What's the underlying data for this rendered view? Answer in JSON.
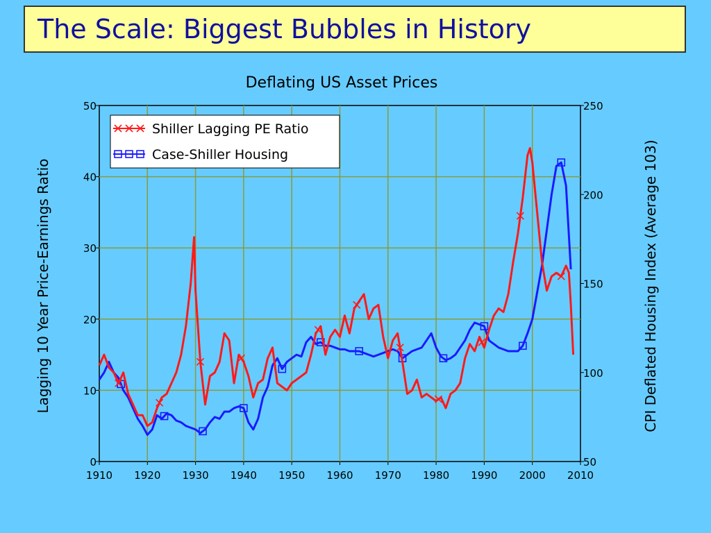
{
  "slide": {
    "title": "The Scale: Biggest Bubbles in History"
  },
  "chart_data": {
    "type": "line",
    "title": "Deflating US Asset Prices",
    "xlabel": "",
    "ylabel": "Lagging 10 Year Price-Earnings Ratio",
    "y2label": "CPI Deflated Housing Index (Average 103)",
    "xlim": [
      1910,
      2010
    ],
    "ylim": [
      0,
      50
    ],
    "y2lim": [
      50,
      250
    ],
    "x_ticks": [
      1910,
      1920,
      1930,
      1940,
      1950,
      1960,
      1970,
      1980,
      1990,
      2000,
      2010
    ],
    "y_ticks": [
      0,
      10,
      20,
      30,
      40,
      50
    ],
    "y2_ticks": [
      50,
      100,
      150,
      200,
      250
    ],
    "grid": true,
    "legend_position": "top-left",
    "colors": {
      "pe": "#FF1A1A",
      "housing": "#1A1AFF",
      "grid": "#8A9A3A"
    },
    "series": [
      {
        "name": "Shiller Lagging PE Ratio",
        "axis": "left",
        "marker": "x",
        "x": [
          1910,
          1911,
          1912,
          1913,
          1914,
          1915,
          1916,
          1917,
          1918,
          1919,
          1920,
          1921,
          1922,
          1923,
          1924,
          1925,
          1926,
          1927,
          1928,
          1929,
          1929.7,
          1930,
          1930.6,
          1931,
          1932,
          1933,
          1934,
          1935,
          1936,
          1937,
          1938,
          1939,
          1940,
          1941,
          1942,
          1943,
          1944,
          1945,
          1946,
          1947,
          1948,
          1949,
          1950,
          1951,
          1952,
          1953,
          1954,
          1955,
          1956,
          1957,
          1958,
          1959,
          1960,
          1961,
          1962,
          1963,
          1964,
          1965,
          1966,
          1967,
          1968,
          1969,
          1970,
          1971,
          1972,
          1973,
          1974,
          1975,
          1976,
          1977,
          1978,
          1979,
          1980,
          1981,
          1982,
          1983,
          1984,
          1985,
          1986,
          1987,
          1988,
          1989,
          1990,
          1991,
          1992,
          1993,
          1994,
          1995,
          1996,
          1997,
          1998,
          1999,
          1999.5,
          2000,
          2001,
          2002,
          2003,
          2004,
          2005,
          2006,
          2007,
          2007.6,
          2008,
          2008.5
        ],
        "y": [
          13.5,
          15,
          13.2,
          12.5,
          11,
          12.5,
          9.5,
          8,
          6.5,
          6.5,
          5,
          5.5,
          7.5,
          9,
          9.5,
          11,
          12.5,
          15,
          19,
          25,
          31.5,
          24,
          18,
          14,
          8,
          12,
          12.5,
          14,
          18,
          17,
          11,
          15,
          14,
          12,
          9,
          11,
          11.5,
          14.5,
          16,
          11,
          10.5,
          10,
          11,
          11.5,
          12,
          12.5,
          15,
          18,
          19,
          15,
          17.5,
          18.5,
          17.5,
          20.5,
          18,
          21.5,
          22.5,
          23.5,
          20,
          21.5,
          22,
          17.5,
          14.5,
          17,
          18,
          14,
          9.5,
          10,
          11.5,
          9,
          9.5,
          9,
          8.5,
          9,
          7.5,
          9.5,
          10,
          11,
          14.5,
          16.5,
          15.5,
          17.5,
          16,
          18.5,
          20.5,
          21.5,
          21,
          23.5,
          28,
          32,
          37,
          43,
          44,
          42,
          35,
          28,
          24,
          26,
          26.5,
          26,
          27.5,
          26.5,
          22,
          15
        ]
      },
      {
        "name": "Case-Shiller Housing",
        "axis": "right",
        "marker": "square",
        "x": [
          1910,
          1911,
          1912,
          1913,
          1914,
          1915,
          1916,
          1917,
          1918,
          1919,
          1920,
          1921,
          1922,
          1923,
          1924,
          1925,
          1926,
          1927,
          1928,
          1929,
          1930,
          1931,
          1932,
          1933,
          1934,
          1935,
          1936,
          1937,
          1938,
          1939,
          1940,
          1941,
          1942,
          1943,
          1944,
          1945,
          1946,
          1947,
          1948,
          1949,
          1950,
          1951,
          1952,
          1953,
          1954,
          1955,
          1956,
          1957,
          1958,
          1959,
          1960,
          1961,
          1962,
          1963,
          1964,
          1965,
          1966,
          1967,
          1968,
          1969,
          1970,
          1971,
          1972,
          1973,
          1974,
          1975,
          1976,
          1977,
          1978,
          1979,
          1980,
          1981,
          1982,
          1983,
          1984,
          1985,
          1986,
          1987,
          1988,
          1989,
          1990,
          1991,
          1992,
          1993,
          1994,
          1995,
          1996,
          1997,
          1998,
          1999,
          2000,
          2001,
          2002,
          2003,
          2004,
          2005,
          2006,
          2007,
          2008
        ],
        "y": [
          96,
          100,
          106,
          100,
          97,
          90,
          86,
          80,
          74,
          70,
          65,
          68,
          76,
          74,
          77,
          76,
          73,
          72,
          70,
          69,
          68,
          66,
          68,
          72,
          75,
          74,
          78,
          78,
          80,
          81,
          80,
          72,
          68,
          74,
          86,
          92,
          104,
          108,
          102,
          106,
          108,
          110,
          109,
          117,
          120,
          116,
          117,
          115,
          115,
          114,
          113,
          113,
          112,
          112,
          112,
          111,
          110,
          109,
          110,
          111,
          112,
          113,
          112,
          108,
          110,
          112,
          113,
          114,
          118,
          122,
          114,
          109,
          107,
          108,
          110,
          114,
          118,
          124,
          128,
          127,
          126,
          118,
          116,
          114,
          113,
          112,
          112,
          112,
          115,
          122,
          130,
          145,
          160,
          180,
          200,
          216,
          218,
          205,
          158
        ]
      }
    ],
    "marker_points": {
      "pe_x": [
        1914,
        1922.5,
        1931,
        1939.5,
        1955.5,
        1963.5,
        1972.5,
        1980.5,
        1989.5,
        1997.5,
        2006
      ],
      "housing_x": [
        1914.5,
        1923.5,
        1931.5,
        1940,
        1948,
        1956,
        1964,
        1973,
        1981.5,
        1990,
        1998,
        2006
      ]
    }
  }
}
